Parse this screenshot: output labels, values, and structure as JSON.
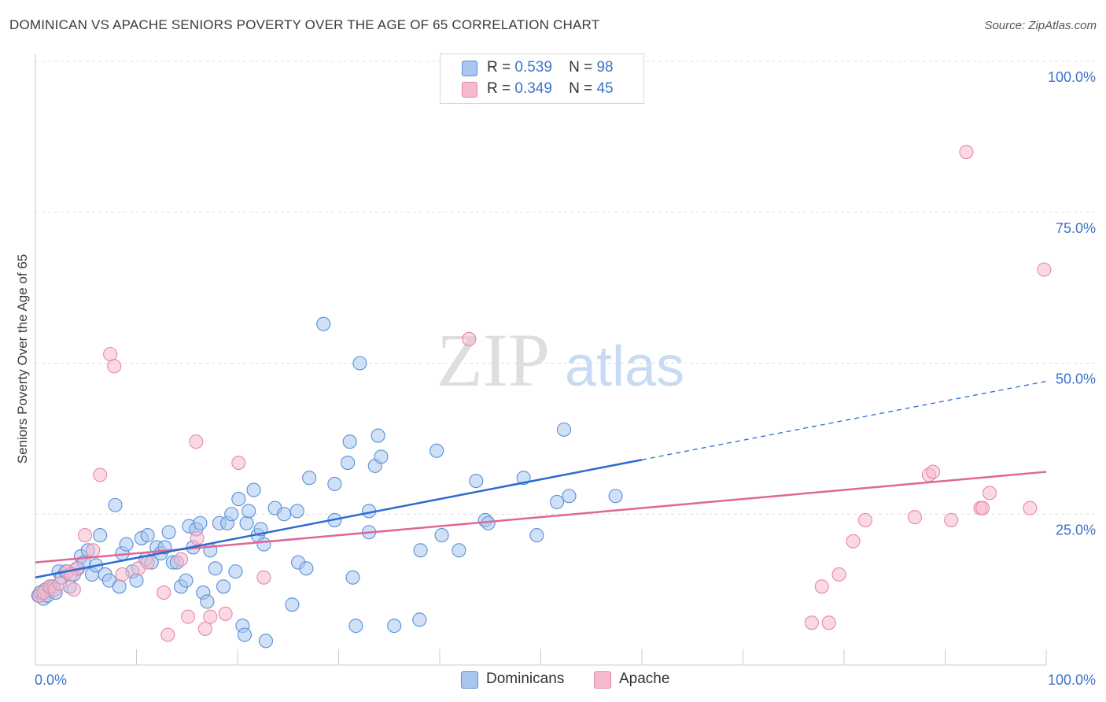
{
  "header": {
    "title": "DOMINICAN VS APACHE SENIORS POVERTY OVER THE AGE OF 65 CORRELATION CHART",
    "source": "Source: ZipAtlas.com"
  },
  "legend_top": [
    {
      "r_label": "R =",
      "r_value": "0.539",
      "n_label": "N =",
      "n_value": "98"
    },
    {
      "r_label": "R =",
      "r_value": "0.349",
      "n_label": "N =",
      "n_value": "45"
    }
  ],
  "legend_bottom": [
    {
      "label": "Dominicans"
    },
    {
      "label": "Apache"
    }
  ],
  "watermark": {
    "zip": "ZIP",
    "atlas": "atlas"
  },
  "chart_data": {
    "type": "scatter",
    "title": "DOMINICAN VS APACHE SENIORS POVERTY OVER THE AGE OF 65 CORRELATION CHART",
    "xlabel": "",
    "ylabel": "Seniors Poverty Over the Age of 65",
    "xlim": [
      0,
      100
    ],
    "ylim": [
      0,
      100
    ],
    "x_tick_labels": [
      "0.0%",
      "100.0%"
    ],
    "y_ticks": [
      {
        "value": 25,
        "label": "25.0%"
      },
      {
        "value": 50,
        "label": "50.0%"
      },
      {
        "value": 75,
        "label": "75.0%"
      },
      {
        "value": 100,
        "label": "100.0%"
      }
    ],
    "grid": true,
    "legend_position": "top-center",
    "colors": {
      "dominicans_fill": "#a9c6f0",
      "dominicans_stroke": "#5b8fd6",
      "dominicans_line": "#2b6cd0",
      "apache_fill": "#f6b9cd",
      "apache_stroke": "#e689a8",
      "apache_line": "#e06794",
      "axis_label": "#3d74c9",
      "grid": "#dddddd"
    },
    "series": [
      {
        "name": "Dominicans",
        "r": 0.539,
        "n": 98,
        "trend": {
          "x0": 0,
          "y0": 14.5,
          "x1": 60,
          "y1": 34,
          "dash_to_x": 100,
          "dash_to_y": 47
        },
        "points": [
          [
            0.3,
            11.5
          ],
          [
            0.5,
            12
          ],
          [
            0.8,
            11
          ],
          [
            1,
            12.5
          ],
          [
            1.2,
            11.5
          ],
          [
            1.5,
            13
          ],
          [
            1.8,
            13
          ],
          [
            2,
            12
          ],
          [
            2.3,
            15.5
          ],
          [
            2.6,
            14.5
          ],
          [
            3,
            15.5
          ],
          [
            3.4,
            13
          ],
          [
            3.8,
            15
          ],
          [
            4.2,
            16
          ],
          [
            4.5,
            18
          ],
          [
            4.8,
            17
          ],
          [
            5.2,
            19
          ],
          [
            5.6,
            15
          ],
          [
            6,
            16.5
          ],
          [
            6.4,
            21.5
          ],
          [
            6.9,
            15
          ],
          [
            7.3,
            14
          ],
          [
            7.9,
            26.5
          ],
          [
            8.3,
            13
          ],
          [
            8.6,
            18.5
          ],
          [
            9,
            20
          ],
          [
            9.6,
            15.5
          ],
          [
            10,
            14
          ],
          [
            10.5,
            21
          ],
          [
            10.9,
            17.5
          ],
          [
            11.1,
            21.5
          ],
          [
            11.5,
            17
          ],
          [
            12,
            19.5
          ],
          [
            12.4,
            18.5
          ],
          [
            12.8,
            19.5
          ],
          [
            13.2,
            22
          ],
          [
            13.6,
            17
          ],
          [
            14,
            17
          ],
          [
            14.4,
            13
          ],
          [
            14.9,
            14
          ],
          [
            15.2,
            23
          ],
          [
            15.6,
            19.5
          ],
          [
            15.9,
            22.5
          ],
          [
            16.3,
            23.5
          ],
          [
            16.6,
            12
          ],
          [
            17,
            10.5
          ],
          [
            17.3,
            19
          ],
          [
            17.8,
            16
          ],
          [
            18.2,
            23.5
          ],
          [
            18.6,
            13
          ],
          [
            19,
            23.5
          ],
          [
            19.4,
            25
          ],
          [
            19.8,
            15.5
          ],
          [
            20.1,
            27.5
          ],
          [
            20.5,
            6.5
          ],
          [
            20.9,
            23.5
          ],
          [
            21.1,
            25.5
          ],
          [
            21.6,
            29
          ],
          [
            22,
            21.5
          ],
          [
            22.3,
            22.5
          ],
          [
            22.6,
            20
          ],
          [
            22.8,
            4
          ],
          [
            23.7,
            26
          ],
          [
            24.6,
            25
          ],
          [
            25.4,
            10
          ],
          [
            25.9,
            25.5
          ],
          [
            26,
            17
          ],
          [
            26.8,
            16
          ],
          [
            27.1,
            31
          ],
          [
            28.5,
            56.5
          ],
          [
            29.6,
            30
          ],
          [
            29.6,
            24
          ],
          [
            30.9,
            33.5
          ],
          [
            31.1,
            37
          ],
          [
            31.4,
            14.5
          ],
          [
            31.7,
            6.5
          ],
          [
            32.1,
            50
          ],
          [
            33.6,
            33
          ],
          [
            33.9,
            38
          ],
          [
            34.2,
            34.5
          ],
          [
            33,
            22
          ],
          [
            33,
            25.5
          ],
          [
            38.1,
            19
          ],
          [
            39.7,
            35.5
          ],
          [
            40.2,
            21.5
          ],
          [
            41.9,
            19
          ],
          [
            43.6,
            30.5
          ],
          [
            44.5,
            24
          ],
          [
            44.8,
            23.5
          ],
          [
            48.3,
            31
          ],
          [
            49.6,
            21.5
          ],
          [
            51.6,
            27
          ],
          [
            52.3,
            39
          ],
          [
            52.8,
            28
          ],
          [
            57.4,
            28
          ],
          [
            38,
            7.5
          ],
          [
            35.5,
            6.5
          ],
          [
            20.7,
            5
          ]
        ]
      },
      {
        "name": "Apache",
        "r": 0.349,
        "n": 45,
        "trend": {
          "x0": 0,
          "y0": 17,
          "x1": 100,
          "y1": 32
        },
        "points": [
          [
            0.4,
            11.5
          ],
          [
            0.8,
            12
          ],
          [
            1.4,
            13
          ],
          [
            1.9,
            12.5
          ],
          [
            2.4,
            13.5
          ],
          [
            3.2,
            15.5
          ],
          [
            3.8,
            12.5
          ],
          [
            4.1,
            16
          ],
          [
            4.9,
            21.5
          ],
          [
            5.7,
            19
          ],
          [
            6.4,
            31.5
          ],
          [
            7.4,
            51.5
          ],
          [
            7.8,
            49.5
          ],
          [
            8.6,
            15
          ],
          [
            10.2,
            16
          ],
          [
            11.1,
            17
          ],
          [
            12.7,
            12
          ],
          [
            13.1,
            5
          ],
          [
            14.4,
            17.5
          ],
          [
            15.1,
            8
          ],
          [
            15.9,
            37
          ],
          [
            16,
            21
          ],
          [
            16.8,
            6
          ],
          [
            17.3,
            8
          ],
          [
            18.8,
            8.5
          ],
          [
            20.1,
            33.5
          ],
          [
            22.6,
            14.5
          ],
          [
            42.9,
            54
          ],
          [
            76.8,
            7
          ],
          [
            77.8,
            13
          ],
          [
            78.5,
            7
          ],
          [
            79.5,
            15
          ],
          [
            80.9,
            20.5
          ],
          [
            82.1,
            24
          ],
          [
            87,
            24.5
          ],
          [
            88.4,
            31.5
          ],
          [
            88.8,
            32
          ],
          [
            90.6,
            24
          ],
          [
            92.1,
            85
          ],
          [
            93.5,
            26
          ],
          [
            93.7,
            26
          ],
          [
            94.4,
            28.5
          ],
          [
            98.4,
            26
          ],
          [
            99.8,
            65.5
          ],
          [
            3.5,
            15
          ]
        ]
      }
    ]
  }
}
